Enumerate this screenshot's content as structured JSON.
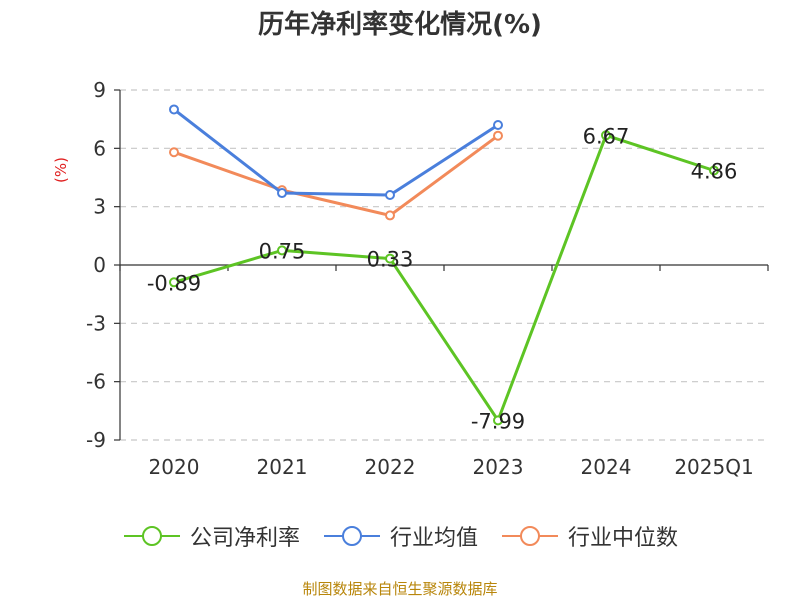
{
  "chart_data": {
    "type": "line",
    "title": "历年净利率变化情况(%)",
    "ylabel": "(%)",
    "categories": [
      "2020",
      "2021",
      "2022",
      "2023",
      "2024",
      "2025Q1"
    ],
    "yticks": [
      "9",
      "6",
      "3",
      "0",
      "-3",
      "-6",
      "-9"
    ],
    "ylim": [
      -9,
      9
    ],
    "grid": true,
    "legend_position": "bottom",
    "series": [
      {
        "name": "公司净利率",
        "color": "#5dc424",
        "values": [
          -0.89,
          0.75,
          0.33,
          -7.99,
          6.67,
          4.86
        ],
        "labels": [
          "-0.89",
          "0.75",
          "0.33",
          "-7.99",
          "6.67",
          "4.86"
        ]
      },
      {
        "name": "行业均值",
        "color": "#4a7fdc",
        "values": [
          8.0,
          3.7,
          3.6,
          7.2,
          null,
          null
        ]
      },
      {
        "name": "行业中位数",
        "color": "#f28a5a",
        "values": [
          5.8,
          3.85,
          2.55,
          6.65,
          null,
          null
        ]
      }
    ]
  },
  "source_note": "制图数据来自恒生聚源数据库"
}
